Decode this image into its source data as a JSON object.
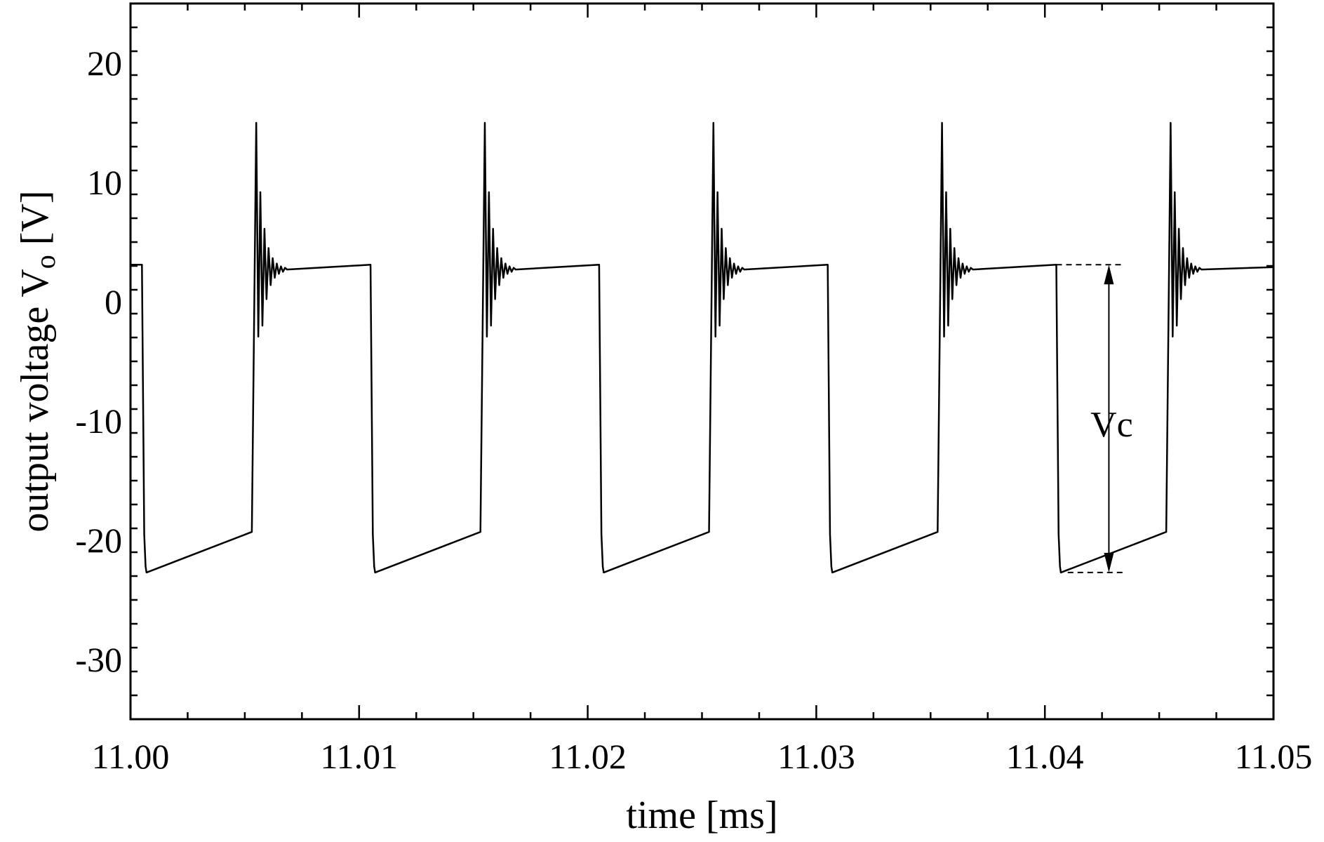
{
  "chart_data": {
    "type": "line",
    "title": "",
    "xlabel": "time [ms]",
    "ylabel_main": "output voltage V",
    "ylabel_sub": "o",
    "ylabel_unit": " [V]",
    "xlim": [
      11.0,
      11.05
    ],
    "ylim": [
      -35,
      25
    ],
    "x_ticks": [
      11.0,
      11.01,
      11.02,
      11.03,
      11.04,
      11.05
    ],
    "x_tick_labels": [
      "11.00",
      "11.01",
      "11.02",
      "11.03",
      "11.04",
      "11.05"
    ],
    "y_ticks": [
      20,
      10,
      0,
      -10,
      -20,
      -30
    ],
    "y_tick_labels": [
      "20",
      "10",
      "0",
      "-10",
      "-20",
      "-30"
    ],
    "grid": false,
    "series": [
      {
        "color": "#000000",
        "period_ms": 0.01,
        "first_fall_ms": 11.0005,
        "high_level_v": 3.1,
        "low_min_v": -22.7,
        "low_end_v": -19.3,
        "fall_duration_ms": 0.0002,
        "low_duration_ms": 0.0048,
        "spike_peak_v": 15,
        "ring_settle_v": 2.7
      }
    ],
    "annotation": {
      "label": "Vc",
      "x_ms": 11.0428,
      "y_top_v": 3.1,
      "y_bottom_v": -22.7
    }
  }
}
